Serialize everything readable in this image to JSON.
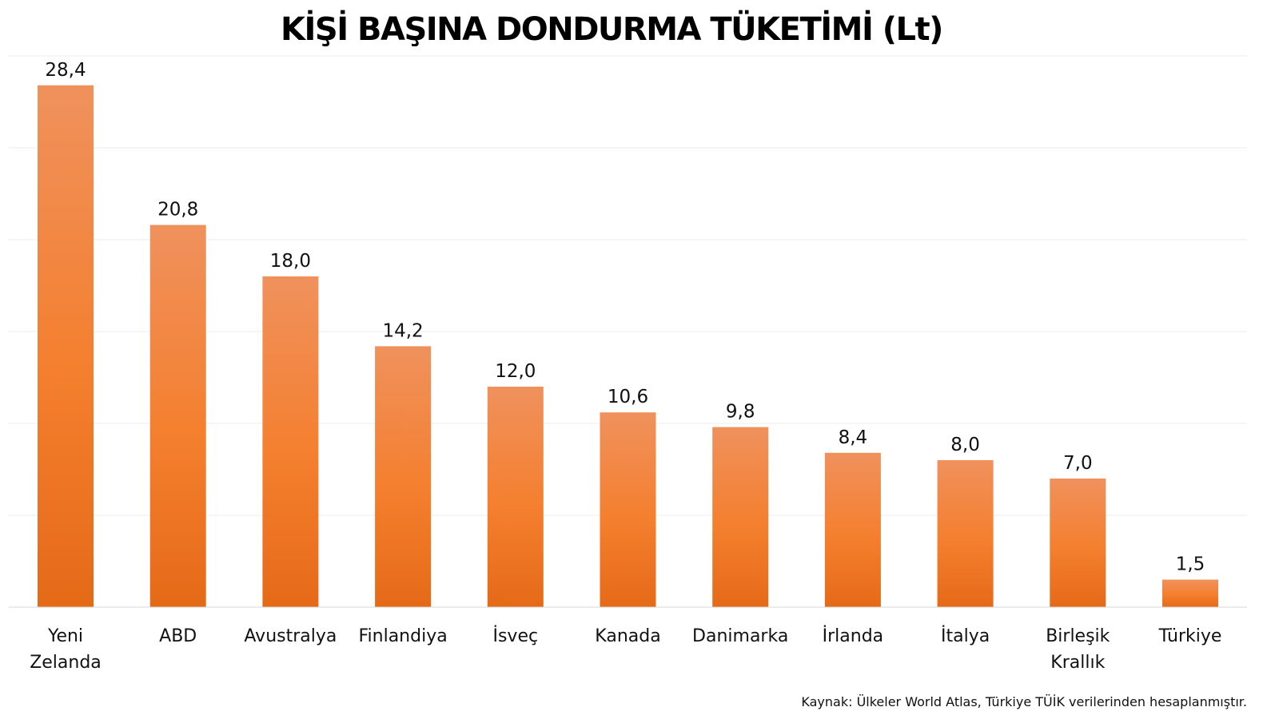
{
  "chart_data": {
    "type": "bar",
    "title": "KİŞİ BAŞINA DONDURMA TÜKETİMİ (Lt)",
    "categories": [
      "Yeni Zelanda",
      "ABD",
      "Avustralya",
      "Finlandiya",
      "İsveç",
      "Kanada",
      "Danimarka",
      "İrlanda",
      "İtalya",
      "Birleşik Krallık",
      "Türkiye"
    ],
    "category_lines": [
      [
        "Yeni",
        "Zelanda"
      ],
      [
        "ABD"
      ],
      [
        "Avustralya"
      ],
      [
        "Finlandiya"
      ],
      [
        "İsveç"
      ],
      [
        "Kanada"
      ],
      [
        "Danimarka"
      ],
      [
        "İrlanda"
      ],
      [
        "İtalya"
      ],
      [
        "Birleşik",
        "Krallık"
      ],
      [
        "Türkiye"
      ]
    ],
    "values": [
      28.4,
      20.8,
      18.0,
      14.2,
      12.0,
      10.6,
      9.8,
      8.4,
      8.0,
      7.0,
      1.5
    ],
    "value_labels": [
      "28,4",
      "20,8",
      "18,0",
      "14,2",
      "12,0",
      "10,6",
      "9,8",
      "8,4",
      "8,0",
      "7,0",
      "1,5"
    ],
    "ylim": [
      0,
      30
    ],
    "grid": true,
    "legend": "none",
    "bar_color_top": "#f0915d",
    "bar_color_mid": "#f47f2e",
    "bar_color_bottom": "#e56a18"
  },
  "source_note": "Kaynak: Ülkeler World Atlas, Türkiye TÜİK verilerinden hesaplanmıştır."
}
